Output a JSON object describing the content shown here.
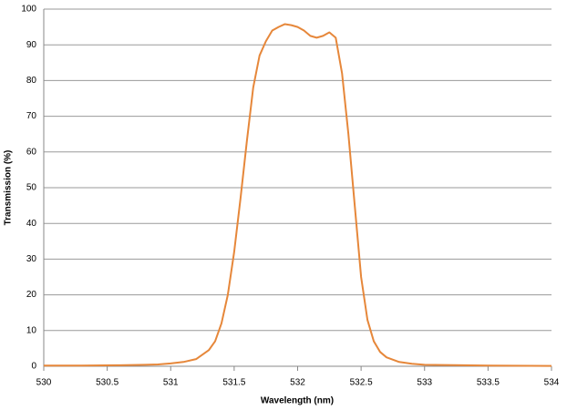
{
  "chart_data": {
    "type": "line",
    "x_label": "Wavelength (nm)",
    "y_label": "Transmission (%)",
    "xlim": [
      530,
      534
    ],
    "ylim": [
      0,
      100
    ],
    "xticks": [
      530,
      530.5,
      531,
      531.5,
      532,
      532.5,
      533,
      533.5,
      534
    ],
    "yticks": [
      0,
      10,
      20,
      30,
      40,
      50,
      60,
      70,
      80,
      90,
      100
    ],
    "grid": true,
    "series": [
      {
        "color": "#e6873a",
        "x": [
          530,
          530.3,
          530.6,
          530.8,
          530.9,
          531,
          531.1,
          531.2,
          531.3,
          531.35,
          531.4,
          531.45,
          531.5,
          531.55,
          531.6,
          531.65,
          531.7,
          531.75,
          531.8,
          531.85,
          531.9,
          531.95,
          532,
          532.05,
          532.1,
          532.15,
          532.2,
          532.25,
          532.3,
          532.35,
          532.4,
          532.45,
          532.5,
          532.55,
          532.6,
          532.65,
          532.7,
          532.8,
          532.9,
          533,
          533.5,
          534
        ],
        "values": [
          0.2,
          0.2,
          0.3,
          0.4,
          0.5,
          0.8,
          1.2,
          2,
          4.5,
          7,
          12,
          20,
          32,
          47,
          63,
          78,
          87,
          91,
          94,
          95,
          95.8,
          95.5,
          95,
          94,
          92.5,
          92,
          92.5,
          93.5,
          92,
          82,
          65,
          45,
          25,
          13,
          7,
          4,
          2.5,
          1.2,
          0.7,
          0.4,
          0.2,
          0.1
        ]
      }
    ]
  }
}
